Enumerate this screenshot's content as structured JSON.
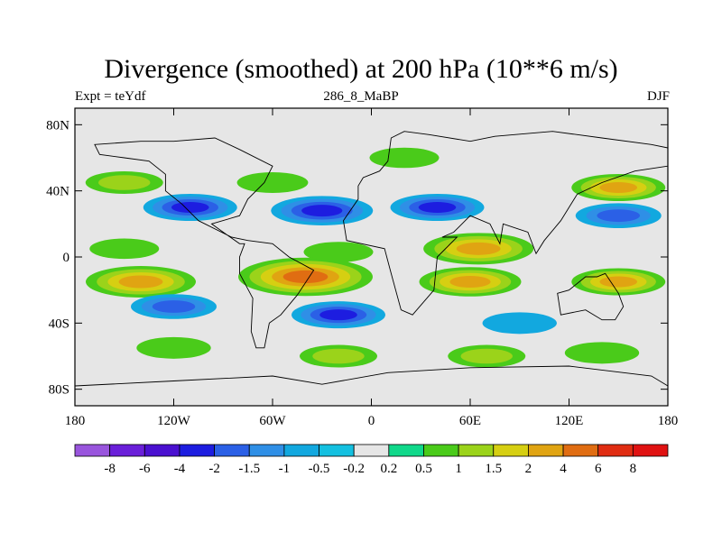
{
  "chart_data": {
    "type": "heatmap",
    "title": "Divergence (smoothed) at 200 hPa (10**6 m/s)",
    "left_subtitle": "Expt = teYdf",
    "center_subtitle": "286_8_MaBP",
    "right_subtitle": "DJF",
    "xlim": [
      -180,
      180
    ],
    "ylim": [
      -90,
      90
    ],
    "x_ticks": [
      {
        "value": -180,
        "label": "180"
      },
      {
        "value": -120,
        "label": "120W"
      },
      {
        "value": -60,
        "label": "60W"
      },
      {
        "value": 0,
        "label": "0"
      },
      {
        "value": 60,
        "label": "60E"
      },
      {
        "value": 120,
        "label": "120E"
      },
      {
        "value": 180,
        "label": "180"
      }
    ],
    "y_ticks": [
      {
        "value": 80,
        "label": "80N"
      },
      {
        "value": 40,
        "label": "40N"
      },
      {
        "value": 0,
        "label": "0"
      },
      {
        "value": -40,
        "label": "40S"
      },
      {
        "value": -80,
        "label": "80S"
      }
    ],
    "colorbar": {
      "levels": [
        "-8",
        "-6",
        "-4",
        "-2",
        "-1.5",
        "-1",
        "-0.5",
        "-0.2",
        "0.2",
        "0.5",
        "1",
        "1.5",
        "2",
        "4",
        "6",
        "8"
      ],
      "colors": [
        "#9955dd",
        "#6a1fd9",
        "#4a10d0",
        "#1d1de0",
        "#2b60e6",
        "#2f8fe6",
        "#12a8df",
        "#14c0e0",
        "#e6e6e6",
        "#10d88a",
        "#4acb1a",
        "#9bd31a",
        "#d6cf12",
        "#e0a412",
        "#e06d12",
        "#e02d12",
        "#e01212"
      ]
    },
    "fields": [
      {
        "lon": -150,
        "lat": 45,
        "value": 1.0
      },
      {
        "lon": -60,
        "lat": 45,
        "value": 0.6
      },
      {
        "lon": 20,
        "lat": 60,
        "value": 0.5
      },
      {
        "lon": 150,
        "lat": 42,
        "value": 2.0
      },
      {
        "lon": -110,
        "lat": 30,
        "value": -2.0
      },
      {
        "lon": -30,
        "lat": 28,
        "value": -2.5
      },
      {
        "lon": 40,
        "lat": 30,
        "value": -2.0
      },
      {
        "lon": 150,
        "lat": 25,
        "value": -1.5
      },
      {
        "lon": -150,
        "lat": 5,
        "value": 0.5
      },
      {
        "lon": -20,
        "lat": 3,
        "value": 0.5
      },
      {
        "lon": 65,
        "lat": 5,
        "value": 3.0
      },
      {
        "lon": -140,
        "lat": -15,
        "value": 3.0
      },
      {
        "lon": -40,
        "lat": -12,
        "value": 4.5
      },
      {
        "lon": 60,
        "lat": -15,
        "value": 2.5
      },
      {
        "lon": 150,
        "lat": -15,
        "value": 2.0
      },
      {
        "lon": -120,
        "lat": -30,
        "value": -1.5
      },
      {
        "lon": -20,
        "lat": -35,
        "value": -2.0
      },
      {
        "lon": 90,
        "lat": -40,
        "value": -0.8
      },
      {
        "lon": -120,
        "lat": -55,
        "value": 0.8
      },
      {
        "lon": -20,
        "lat": -60,
        "value": 1.0
      },
      {
        "lon": 70,
        "lat": -60,
        "value": 1.0
      },
      {
        "lon": 140,
        "lat": -58,
        "value": 0.8
      }
    ]
  }
}
